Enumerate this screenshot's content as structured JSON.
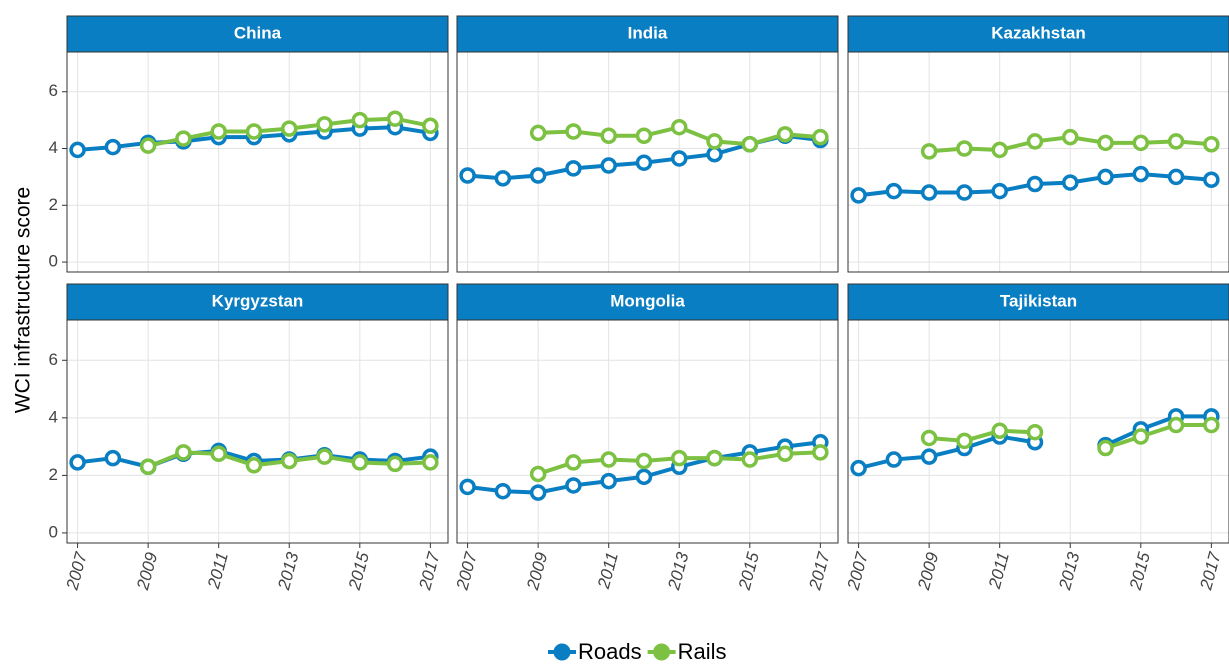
{
  "chart_data": {
    "type": "line",
    "y_label": "WCI infrastructure score",
    "x": [
      2007,
      2008,
      2009,
      2010,
      2011,
      2012,
      2013,
      2014,
      2015,
      2016,
      2017
    ],
    "xlim": [
      2006.7,
      2017.5
    ],
    "xticks": [
      2007,
      2009,
      2011,
      2013,
      2015,
      2017
    ],
    "ylim": [
      -0.35,
      7.4
    ],
    "yticks": [
      0,
      2,
      4,
      6
    ],
    "grid": true,
    "legend": "bottom",
    "panels": [
      {
        "title": "China",
        "series": [
          {
            "name": "Roads",
            "color": "#0a7ec2",
            "values": [
              3.95,
              4.05,
              4.2,
              4.25,
              4.4,
              4.4,
              4.5,
              4.6,
              4.7,
              4.75,
              4.55
            ]
          },
          {
            "name": "Rails",
            "color": "#7cc142",
            "values": [
              null,
              null,
              4.1,
              4.35,
              4.6,
              4.6,
              4.7,
              4.85,
              5.0,
              5.05,
              4.8
            ]
          }
        ]
      },
      {
        "title": "India",
        "series": [
          {
            "name": "Roads",
            "color": "#0a7ec2",
            "values": [
              3.05,
              2.95,
              3.05,
              3.3,
              3.4,
              3.5,
              3.65,
              3.8,
              4.15,
              4.45,
              4.3
            ]
          },
          {
            "name": "Rails",
            "color": "#7cc142",
            "values": [
              null,
              null,
              4.55,
              4.6,
              4.45,
              4.45,
              4.75,
              4.25,
              4.15,
              4.5,
              4.4
            ]
          }
        ]
      },
      {
        "title": "Kazakhstan",
        "series": [
          {
            "name": "Roads",
            "color": "#0a7ec2",
            "values": [
              2.35,
              2.5,
              2.45,
              2.45,
              2.5,
              2.75,
              2.8,
              3.0,
              3.1,
              3.0,
              2.9
            ]
          },
          {
            "name": "Rails",
            "color": "#7cc142",
            "values": [
              null,
              null,
              3.9,
              4.0,
              3.95,
              4.25,
              4.4,
              4.2,
              4.2,
              4.25,
              4.15
            ]
          }
        ]
      },
      {
        "title": "Kyrgyzstan",
        "series": [
          {
            "name": "Roads",
            "color": "#0a7ec2",
            "values": [
              2.45,
              2.6,
              2.3,
              2.75,
              2.85,
              2.5,
              2.55,
              2.7,
              2.55,
              2.5,
              2.65
            ]
          },
          {
            "name": "Rails",
            "color": "#7cc142",
            "values": [
              null,
              null,
              2.3,
              2.8,
              2.75,
              2.35,
              2.5,
              2.65,
              2.45,
              2.4,
              2.45
            ]
          }
        ]
      },
      {
        "title": "Mongolia",
        "series": [
          {
            "name": "Roads",
            "color": "#0a7ec2",
            "values": [
              1.6,
              1.45,
              1.4,
              1.65,
              1.8,
              1.95,
              2.3,
              2.6,
              2.8,
              3.0,
              3.15
            ]
          },
          {
            "name": "Rails",
            "color": "#7cc142",
            "values": [
              null,
              null,
              2.05,
              2.45,
              2.55,
              2.5,
              2.6,
              2.6,
              2.55,
              2.75,
              2.8
            ]
          }
        ]
      },
      {
        "title": "Tajikistan",
        "series": [
          {
            "name": "Roads",
            "color": "#0a7ec2",
            "values": [
              2.25,
              2.55,
              2.65,
              2.95,
              3.35,
              3.15,
              null,
              3.05,
              3.6,
              4.05,
              4.05
            ]
          },
          {
            "name": "Rails",
            "color": "#7cc142",
            "values": [
              null,
              null,
              3.3,
              3.2,
              3.55,
              3.5,
              null,
              2.95,
              3.35,
              3.75,
              3.75
            ]
          }
        ]
      }
    ]
  }
}
